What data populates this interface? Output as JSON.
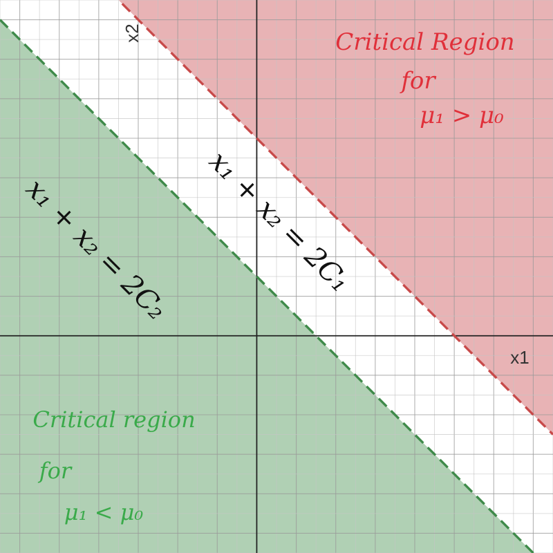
{
  "chart_data": {
    "type": "region-plot",
    "grid": true,
    "xlim": [
      -6.5,
      7.5
    ],
    "ylim": [
      -5.5,
      8.5
    ],
    "axes": {
      "x_label": "x1",
      "y_label": "x2"
    },
    "lines": [
      {
        "name": "line-2c1",
        "equation_label": "x₁ + x₂ = 2C₁",
        "intercept_sum": 5,
        "color": "#c84a4a",
        "style": "dashed"
      },
      {
        "name": "line-2c2",
        "equation_label": "x₁ + x₂ = 2C₂",
        "intercept_sum": 1.5,
        "color": "#3f8a4a",
        "style": "dashed"
      }
    ],
    "regions": [
      {
        "name": "upper",
        "side": "above line-2c1",
        "fill": "#e8b3b5",
        "label": [
          "Critical Region",
          "for",
          "μ₁ > μ₀"
        ],
        "label_color": "#e0303a"
      },
      {
        "name": "lower",
        "side": "below line-2c2",
        "fill": "#b0d0b4",
        "label": [
          "Critical region",
          "for",
          "μ₁ < μ₀"
        ],
        "label_color": "#3aaa4a"
      }
    ]
  }
}
